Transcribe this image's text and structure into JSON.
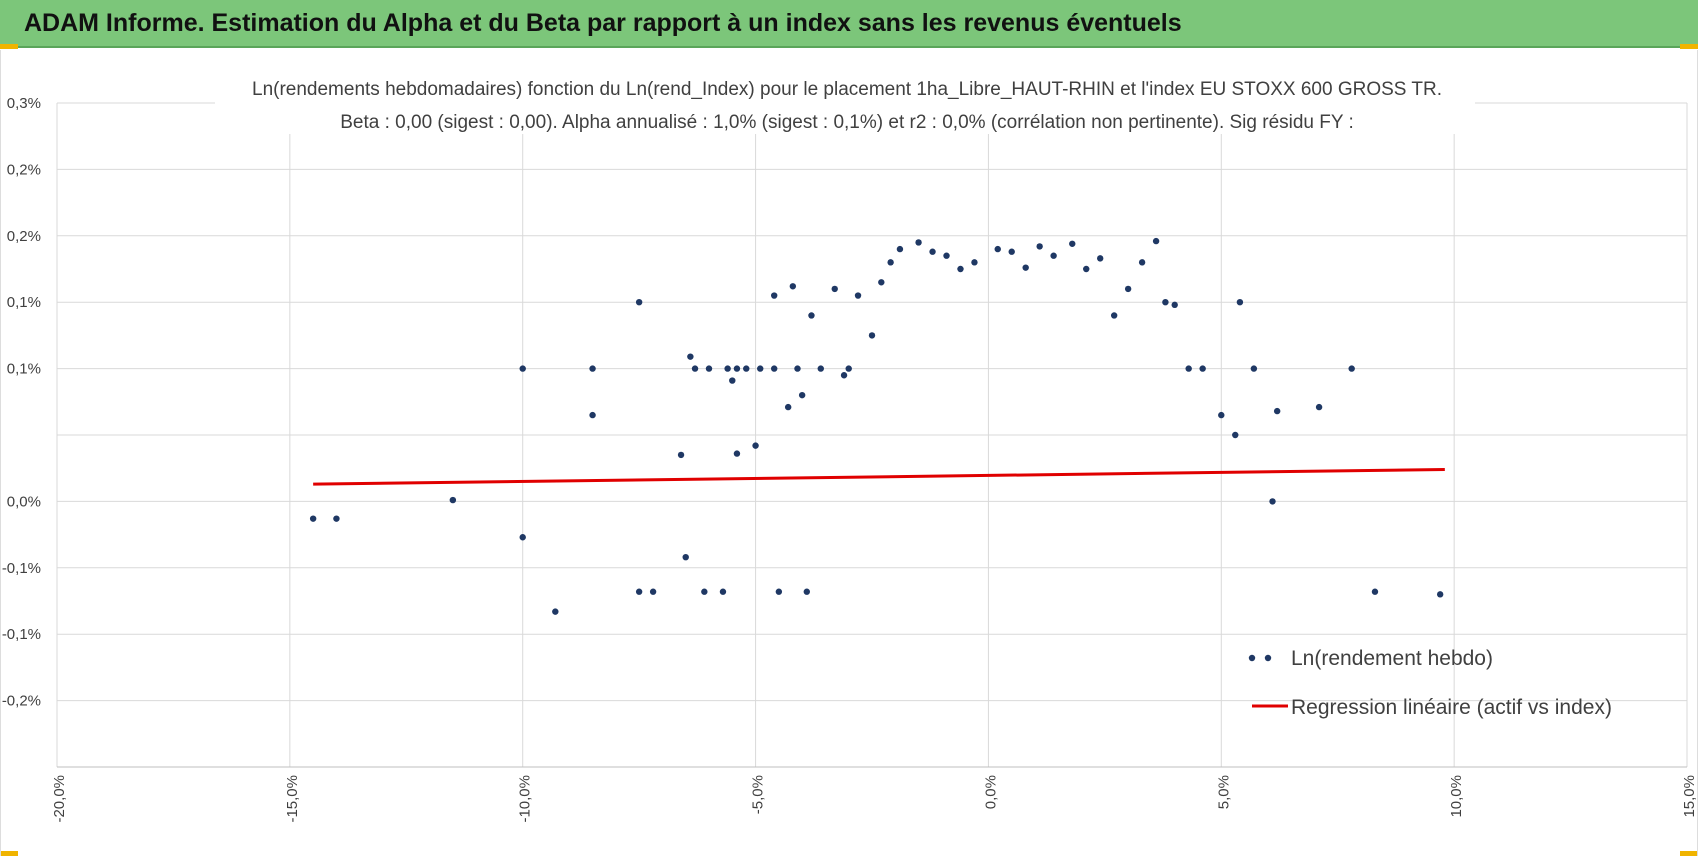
{
  "header": {
    "title": "ADAM Informe. Estimation du Alpha et du Beta par rapport à un index sans les revenus éventuels"
  },
  "colors": {
    "header_bg": "#7cc67a",
    "point": "#1f3864",
    "regression": "#e00000",
    "grid": "#d9d9d9",
    "corner": "#f0b400"
  },
  "chart_data": {
    "type": "scatter",
    "title_line1": "Ln(rendements hebdomadaires) fonction du Ln(rend_Index) pour le placement 1ha_Libre_HAUT-RHIN et l'index EU STOXX 600 GROSS TR.",
    "title_line2": "Beta : 0,00 (sigest : 0,00). Alpha annualisé : 1,0% (sigest : 0,1%) et r2 : 0,0% (corrélation non pertinente). Sig résidu FY :",
    "xlim": [
      -20,
      15
    ],
    "ylim": [
      -0.2,
      0.3
    ],
    "x_ticks": [
      -20,
      -15,
      -10,
      -5,
      0,
      5,
      10,
      15
    ],
    "x_tick_labels": [
      "-20,0%",
      "-15,0%",
      "-10,0%",
      "-5,0%",
      "0,0%",
      "5,0%",
      "10,0%",
      "15,0%"
    ],
    "y_ticks": [
      0.3,
      0.25,
      0.2,
      0.15,
      0.1,
      0.05,
      0.0,
      -0.05,
      -0.1,
      -0.15,
      -0.2
    ],
    "y_tick_labels": [
      "0,3%",
      "0,2%",
      "0,2%",
      "0,1%",
      "0,1%",
      "0,0%",
      "-0,1%",
      "-0,1%",
      "-0,2%"
    ],
    "y_tick_values": [
      0.3,
      0.2,
      0.15,
      0.1,
      0.05,
      0.0,
      -0.05,
      -0.1,
      -0.15
    ],
    "series": [
      {
        "name": "Ln(rendement hebdo)",
        "type": "scatter",
        "x": [
          -14.5,
          -14.0,
          -11.5,
          -10.0,
          -10.0,
          -9.3,
          -8.5,
          -8.5,
          -7.5,
          -7.5,
          -7.2,
          -6.6,
          -6.5,
          -6.4,
          -6.3,
          -6.1,
          -6.0,
          -5.7,
          -5.6,
          -5.5,
          -5.4,
          -5.4,
          -5.2,
          -5.0,
          -4.9,
          -4.6,
          -4.6,
          -4.5,
          -4.3,
          -4.2,
          -4.1,
          -4.0,
          -3.9,
          -3.8,
          -3.6,
          -3.3,
          -3.1,
          -3.0,
          -2.8,
          -2.5,
          -2.3,
          -2.1,
          -1.9,
          -1.5,
          -1.2,
          -0.9,
          -0.6,
          -0.3,
          0.2,
          0.5,
          0.8,
          1.1,
          1.4,
          1.8,
          2.1,
          2.4,
          2.7,
          3.0,
          3.3,
          3.6,
          3.8,
          4.0,
          4.3,
          4.6,
          5.0,
          5.3,
          5.4,
          5.7,
          6.1,
          6.2,
          7.1,
          7.8,
          8.3,
          9.7
        ],
        "y": [
          -0.013,
          -0.013,
          0.001,
          0.1,
          -0.027,
          -0.083,
          0.1,
          0.065,
          0.15,
          -0.068,
          -0.068,
          0.035,
          -0.042,
          0.109,
          0.1,
          -0.068,
          0.1,
          -0.068,
          0.1,
          0.091,
          0.1,
          0.036,
          0.1,
          0.042,
          0.1,
          0.155,
          0.1,
          -0.068,
          0.071,
          0.162,
          0.1,
          0.08,
          -0.068,
          0.14,
          0.1,
          0.16,
          0.095,
          0.1,
          0.155,
          0.125,
          0.165,
          0.18,
          0.19,
          0.195,
          0.188,
          0.185,
          0.175,
          0.18,
          0.19,
          0.188,
          0.176,
          0.192,
          0.185,
          0.194,
          0.175,
          0.183,
          0.14,
          0.16,
          0.18,
          0.196,
          0.15,
          0.148,
          0.1,
          0.1,
          0.065,
          0.05,
          0.15,
          0.1,
          0.0,
          0.068,
          0.071,
          0.1,
          -0.068,
          -0.07
        ]
      },
      {
        "name": "Regression linéaire (actif vs index)",
        "type": "line",
        "x": [
          -14.5,
          9.8
        ],
        "y": [
          0.013,
          0.024
        ]
      }
    ],
    "legend": {
      "position": "bottom-right"
    }
  }
}
